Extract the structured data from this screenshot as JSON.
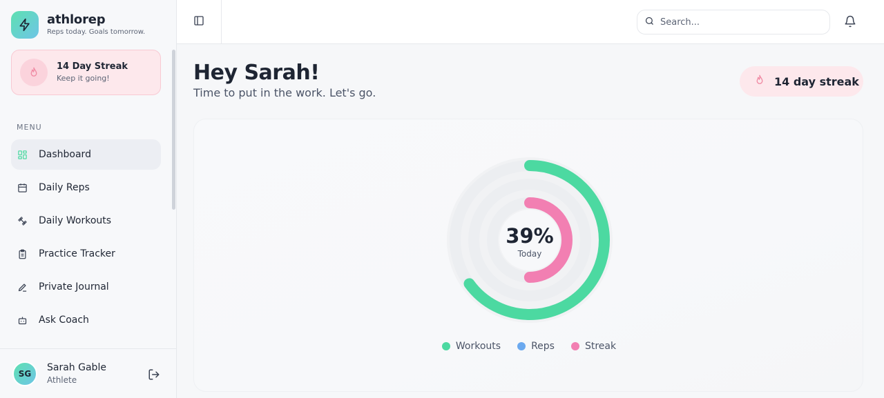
{
  "brand": {
    "name": "athlorep",
    "tagline": "Reps today. Goals tomorrow."
  },
  "sidebar_streak": {
    "title": "14 Day Streak",
    "subtitle": "Keep it going!"
  },
  "menu": {
    "label": "MENU",
    "items": [
      {
        "label": "Dashboard",
        "icon": "grid-icon",
        "active": true
      },
      {
        "label": "Daily Reps",
        "icon": "calendar-icon"
      },
      {
        "label": "Daily Workouts",
        "icon": "dumbbell-icon"
      },
      {
        "label": "Practice Tracker",
        "icon": "clipboard-icon"
      },
      {
        "label": "Private Journal",
        "icon": "pen-icon"
      },
      {
        "label": "Ask Coach",
        "icon": "bot-icon"
      }
    ]
  },
  "user": {
    "initials": "SG",
    "name": "Sarah Gable",
    "role": "Athlete"
  },
  "topbar": {
    "search_placeholder": "Search..."
  },
  "header": {
    "greeting": "Hey Sarah!",
    "subtitle": "Time to put in the work. Let's go.",
    "streak_pill": "14 day streak"
  },
  "progress": {
    "value_label": "39%",
    "caption": "Today",
    "rings": [
      {
        "name": "Workouts",
        "fraction": 0.65,
        "color": "#4cd9a1"
      },
      {
        "name": "Reps",
        "fraction": 0.0,
        "color": "#6ba9ef"
      },
      {
        "name": "Streak",
        "fraction": 0.5,
        "color": "#f27fb2"
      }
    ]
  },
  "legend": [
    {
      "label": "Workouts",
      "color": "#4cd9a1"
    },
    {
      "label": "Reps",
      "color": "#6ba9ef"
    },
    {
      "label": "Streak",
      "color": "#f27fb2"
    }
  ],
  "colors": {
    "accent_green": "#4cd9a1",
    "accent_pink": "#f27fb2",
    "streak_bg": "#fde8ec"
  }
}
